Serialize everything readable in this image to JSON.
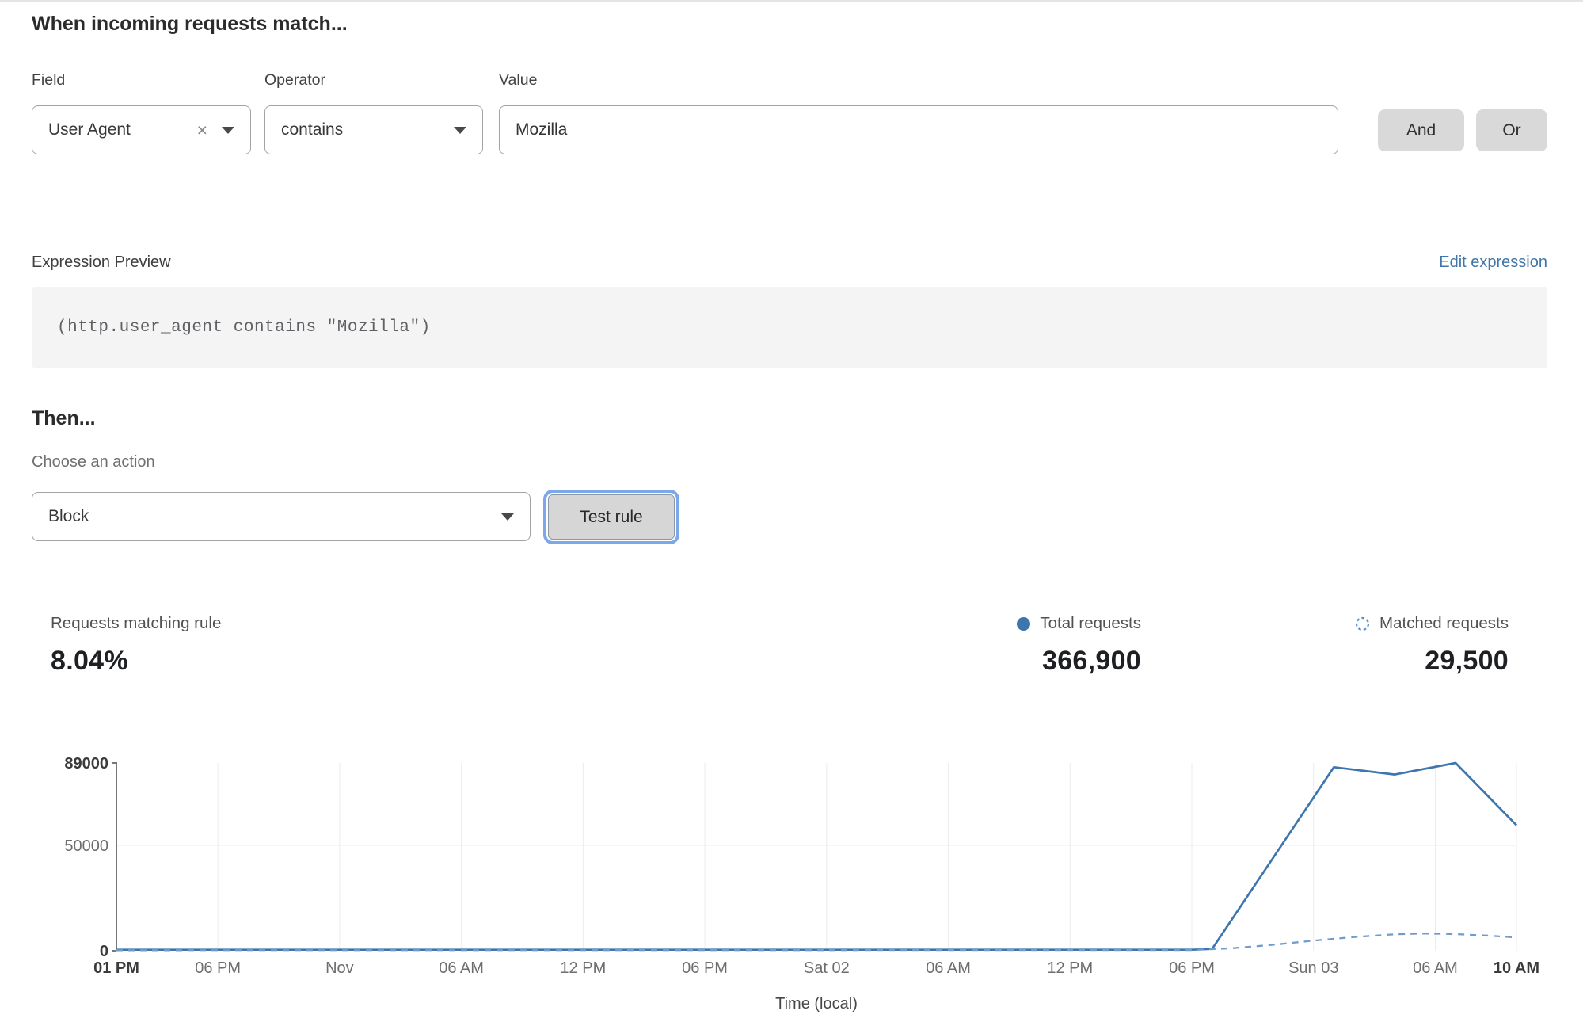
{
  "rule": {
    "heading": "When incoming requests match...",
    "field": {
      "label": "Field",
      "value": "User Agent"
    },
    "operator": {
      "label": "Operator",
      "value": "contains"
    },
    "value": {
      "label": "Value",
      "value": "Mozilla"
    },
    "and_label": "And",
    "or_label": "Or"
  },
  "expression": {
    "label": "Expression Preview",
    "edit_link": "Edit expression",
    "code": "(http.user_agent contains \"Mozilla\")"
  },
  "action": {
    "heading": "Then...",
    "choose_label": "Choose an action",
    "selected": "Block",
    "test_button": "Test rule"
  },
  "stats": {
    "matching": {
      "label": "Requests matching rule",
      "value": "8.04%"
    },
    "total": {
      "label": "Total requests",
      "value": "366,900"
    },
    "matched": {
      "label": "Matched requests",
      "value": "29,500"
    }
  },
  "colors": {
    "accent_blue": "#3d76ae",
    "dashed_blue": "#6f9dcb",
    "link_blue": "#4076a8",
    "focus_ring": "#7ca7ea",
    "button_gray": "#d9d9d9"
  },
  "chart_data": {
    "type": "line",
    "title": "",
    "xlabel": "Time (local)",
    "ylabel": "",
    "ylim": [
      0,
      89000
    ],
    "grid": "vertical gridlines at each x tick; horizontal gridline at 50000",
    "legend_position": "top-right stats row",
    "y_ticks": [
      {
        "v": 89000,
        "label": "89000",
        "bold": true
      },
      {
        "v": 50000,
        "label": "50000",
        "bold": false
      },
      {
        "v": 0,
        "label": "0",
        "bold": true
      }
    ],
    "y_gridlines": [
      50000
    ],
    "x_ticks": [
      "01 PM",
      "06 PM",
      "Nov",
      "06 AM",
      "12 PM",
      "06 PM",
      "Sat 02",
      "06 AM",
      "12 PM",
      "06 PM",
      "Sun 03",
      "06 AM",
      "10 AM"
    ],
    "x_tick_hours": [
      0,
      5,
      11,
      17,
      23,
      29,
      35,
      41,
      47,
      53,
      59,
      65,
      69
    ],
    "series": [
      {
        "name": "Total requests",
        "style": "solid",
        "color": "#3d76ae",
        "points": [
          [
            0,
            500
          ],
          [
            53,
            500
          ],
          [
            54,
            900
          ],
          [
            60,
            87000
          ],
          [
            63,
            83500
          ],
          [
            66,
            89000
          ],
          [
            69,
            59500
          ]
        ]
      },
      {
        "name": "Matched requests",
        "style": "dashed",
        "color": "#6f9dcb",
        "points": [
          [
            0,
            250
          ],
          [
            53,
            350
          ],
          [
            55,
            1200
          ],
          [
            57,
            2800
          ],
          [
            59,
            4800
          ],
          [
            61,
            6500
          ],
          [
            63,
            7800
          ],
          [
            64.5,
            8200
          ],
          [
            66,
            7900
          ],
          [
            67.5,
            7200
          ],
          [
            69,
            6300
          ]
        ]
      }
    ]
  }
}
